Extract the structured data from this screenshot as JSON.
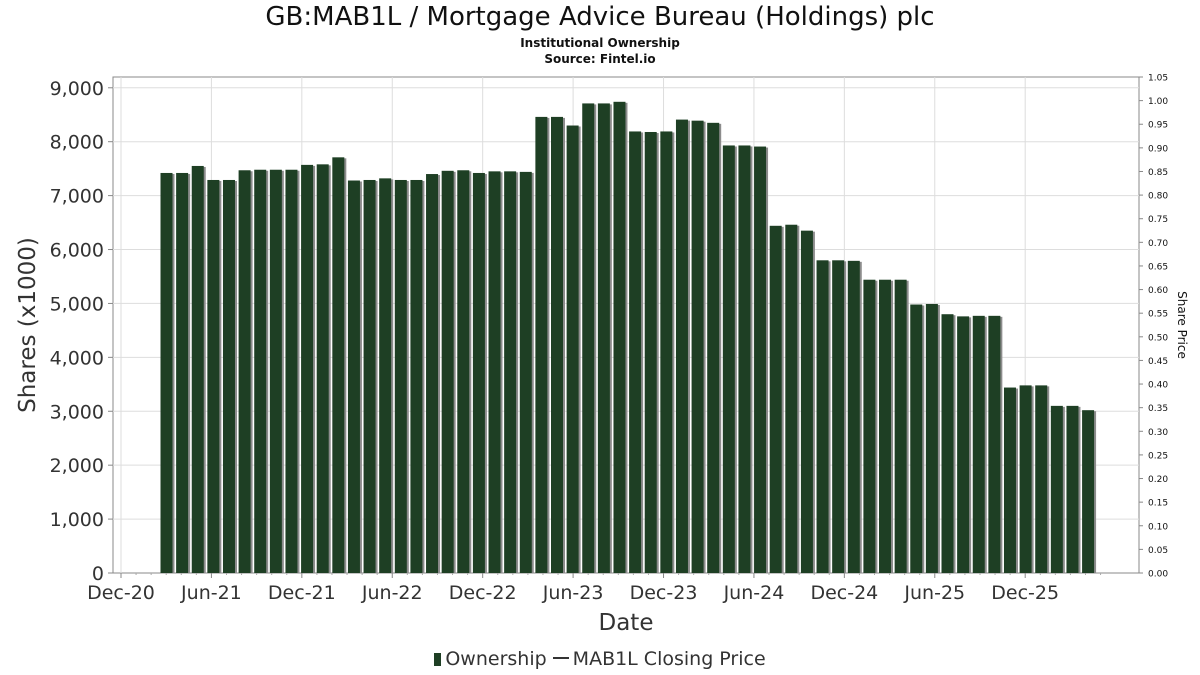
{
  "chart_data": {
    "type": "bar",
    "title": "GB:MAB1L / Mortgage Advice Bureau (Holdings) plc",
    "subtitles": [
      "Institutional Ownership",
      "Source: Fintel.io"
    ],
    "xlabel": "Date",
    "ylabel": "Shares (x1000)",
    "y2label": "Share Price",
    "ylim": [
      0,
      9200
    ],
    "y2lim": [
      0,
      1.05
    ],
    "yticks": [
      "0",
      "1,000",
      "2,000",
      "3,000",
      "4,000",
      "5,000",
      "6,000",
      "7,000",
      "8,000",
      "9,000"
    ],
    "y2ticks": [
      "0.00",
      "0.05",
      "0.10",
      "0.15",
      "0.20",
      "0.25",
      "0.30",
      "0.35",
      "0.40",
      "0.45",
      "0.50",
      "0.55",
      "0.60",
      "0.65",
      "0.70",
      "0.75",
      "0.80",
      "0.85",
      "0.90",
      "0.95",
      "1.00",
      "1.05"
    ],
    "xticks": [
      "Dec-20",
      "Jun-21",
      "Dec-21",
      "Jun-22",
      "Dec-22",
      "Jun-23",
      "Dec-23",
      "Jun-24",
      "Dec-24",
      "Jun-25",
      "Dec-25"
    ],
    "grid": true,
    "legend_placement": "bottom",
    "series": [
      {
        "name": "Ownership",
        "color": "#1e3f24",
        "values": [
          7420,
          7420,
          7550,
          7290,
          7290,
          7470,
          7480,
          7480,
          7480,
          7570,
          7580,
          7710,
          7280,
          7290,
          7320,
          7290,
          7290,
          7400,
          7460,
          7470,
          7420,
          7450,
          7450,
          7440,
          8460,
          8460,
          8300,
          8710,
          8710,
          8740,
          8190,
          8180,
          8190,
          8410,
          8390,
          8350,
          7930,
          7930,
          7910,
          6440,
          6460,
          6350,
          5800,
          5800,
          5790,
          5440,
          5440,
          5440,
          4980,
          4990,
          4800,
          4760,
          4770,
          4770,
          3440,
          3480,
          3480,
          3100,
          3100,
          3020
        ]
      },
      {
        "name": "MAB1L Closing Price",
        "color": "#333333",
        "values": []
      }
    ]
  },
  "legend": {
    "ownership": "Ownership",
    "price": "MAB1L Closing Price"
  }
}
